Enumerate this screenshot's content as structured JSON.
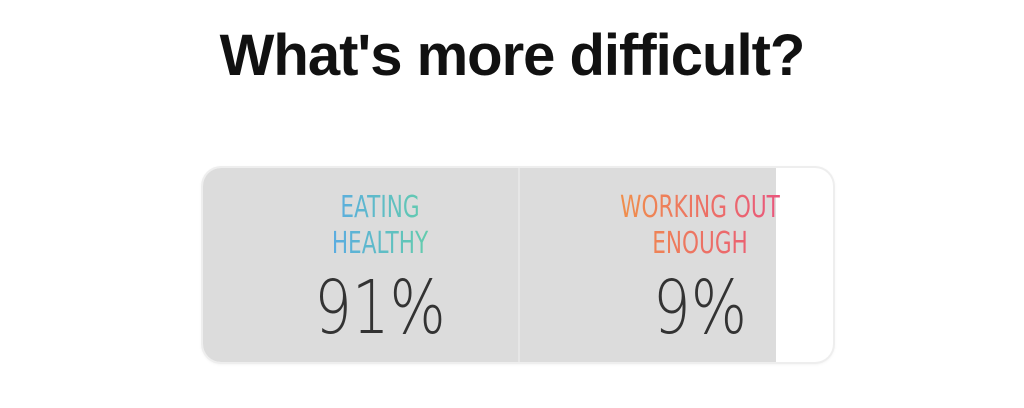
{
  "title": "What's more difficult?",
  "poll": {
    "options": [
      "EATING HEALTHY",
      "WORKING OUT ENOUGH"
    ],
    "values": [
      91,
      9
    ],
    "value_labels": [
      "91%",
      "9%"
    ]
  }
}
